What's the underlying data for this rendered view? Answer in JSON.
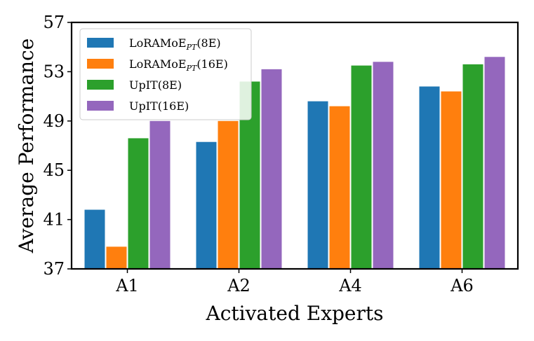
{
  "chart_data": {
    "type": "bar",
    "xlabel": "Activated Experts",
    "ylabel": "Average Performance",
    "ylim": [
      37,
      57
    ],
    "yticks": [
      37,
      41,
      45,
      49,
      53,
      57
    ],
    "categories": [
      "A1",
      "A2",
      "A4",
      "A6"
    ],
    "legend_position": "top-left",
    "grid": false,
    "series": [
      {
        "name": "LoRAMoE",
        "name_sub": "PT",
        "name_suffix": "(8E)",
        "color": "#1f77b4",
        "values": [
          41.8,
          47.3,
          50.6,
          51.8
        ]
      },
      {
        "name": "LoRAMoE",
        "name_sub": "PT",
        "name_suffix": "(16E)",
        "color": "#ff7f0e",
        "values": [
          38.8,
          49.0,
          50.2,
          51.4
        ]
      },
      {
        "name": "UpIT",
        "name_sub": "",
        "name_suffix": "(8E)",
        "color": "#2ca02c",
        "values": [
          47.6,
          52.2,
          53.5,
          53.6
        ]
      },
      {
        "name": "UpIT",
        "name_sub": "",
        "name_suffix": "(16E)",
        "color": "#9467bd",
        "values": [
          49.0,
          53.2,
          53.8,
          54.2
        ]
      }
    ]
  }
}
